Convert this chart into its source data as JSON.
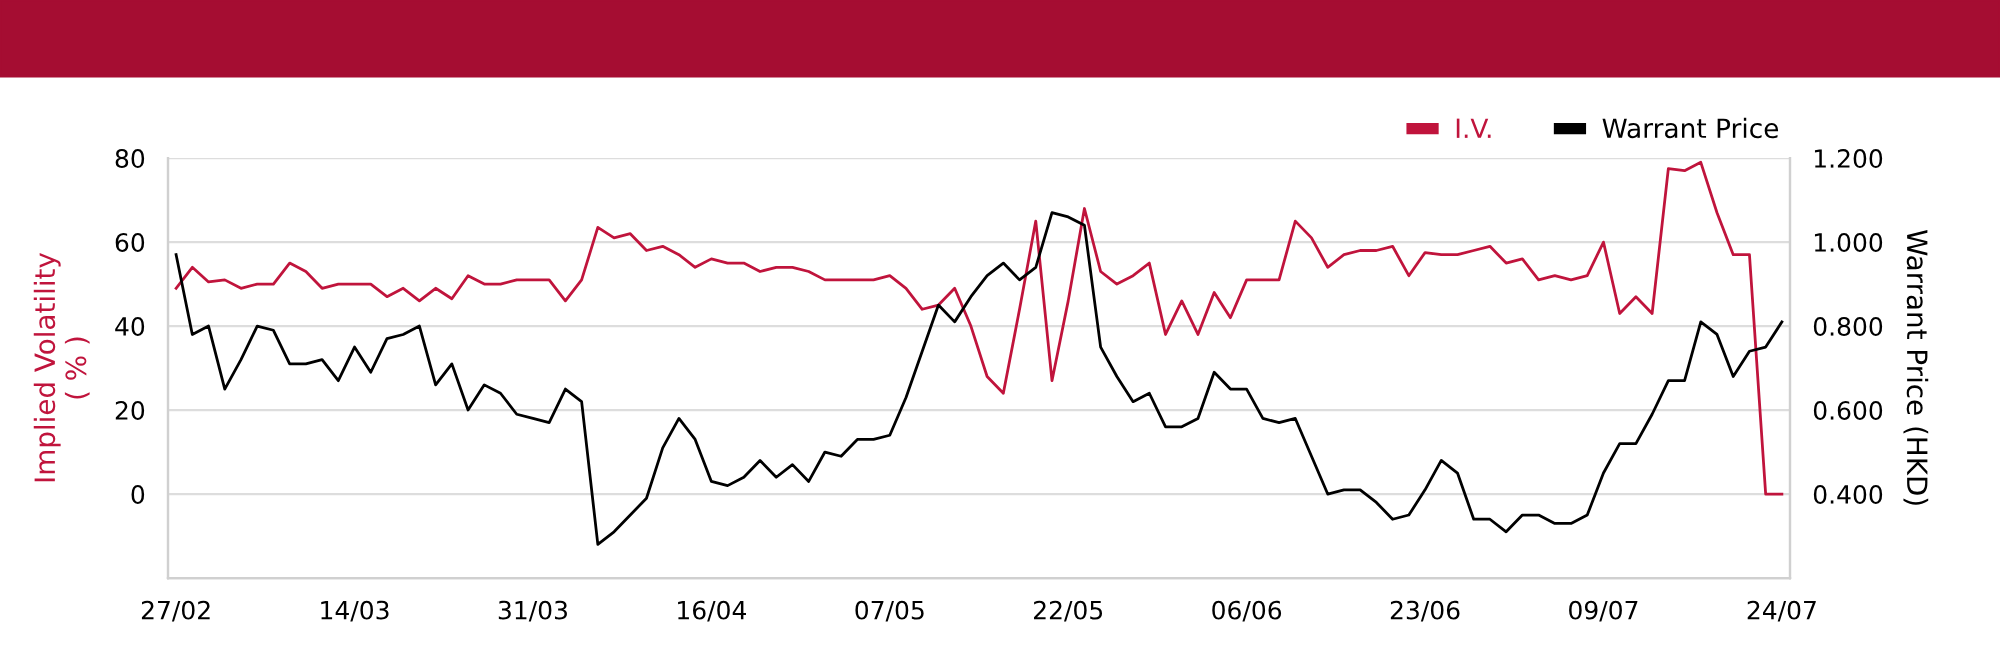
{
  "chart_data": {
    "type": "line",
    "categories": [
      "27/02",
      null,
      null,
      null,
      null,
      null,
      null,
      null,
      null,
      null,
      null,
      "14/03",
      null,
      null,
      null,
      null,
      null,
      null,
      null,
      null,
      null,
      null,
      "31/03",
      null,
      null,
      null,
      null,
      null,
      null,
      null,
      null,
      null,
      null,
      "16/04",
      null,
      null,
      null,
      null,
      null,
      null,
      null,
      null,
      null,
      null,
      "07/05",
      null,
      null,
      null,
      null,
      null,
      null,
      null,
      null,
      null,
      null,
      "22/05",
      null,
      null,
      null,
      null,
      null,
      null,
      null,
      null,
      null,
      null,
      "06/06",
      null,
      null,
      null,
      null,
      null,
      null,
      null,
      null,
      null,
      null,
      "23/06",
      null,
      null,
      null,
      null,
      null,
      null,
      null,
      null,
      null,
      null,
      "09/07",
      null,
      null,
      null,
      null,
      null,
      null,
      null,
      null,
      null,
      null,
      "24/07"
    ],
    "series": [
      {
        "name": "I.V.",
        "color": "#c0143c",
        "values": [
          49,
          54,
          50.5,
          51,
          49,
          50,
          50,
          55,
          53,
          49,
          50,
          50,
          50,
          47,
          49,
          46,
          49,
          46.5,
          52,
          50,
          50,
          51,
          51,
          51,
          46,
          51,
          63.5,
          61,
          62,
          58,
          59,
          57,
          54,
          56,
          55,
          55,
          53,
          54,
          54,
          53,
          51,
          51,
          51,
          51,
          52,
          49,
          44,
          45,
          49,
          40,
          28,
          24,
          44,
          65,
          27,
          46,
          68,
          53,
          50,
          52,
          55,
          38,
          46,
          38,
          48,
          42,
          51,
          51,
          51,
          65,
          61,
          54,
          57,
          58,
          58,
          59,
          52,
          57.5,
          57,
          57,
          58,
          59,
          55,
          56,
          51,
          52,
          51,
          52,
          60,
          43,
          47,
          43,
          77.5,
          77,
          79,
          67,
          57,
          57,
          0,
          0
        ]
      },
      {
        "name": "Warrant Price",
        "color": "#000000",
        "axis": "y2",
        "values": [
          0.97,
          0.78,
          0.8,
          0.65,
          0.72,
          0.8,
          0.79,
          0.71,
          0.71,
          0.72,
          0.67,
          0.75,
          0.69,
          0.77,
          0.78,
          0.8,
          0.66,
          0.71,
          0.6,
          0.66,
          0.64,
          0.59,
          0.58,
          0.57,
          0.65,
          0.62,
          0.28,
          0.31,
          0.35,
          0.39,
          0.51,
          0.58,
          0.53,
          0.43,
          0.42,
          0.44,
          0.48,
          0.44,
          0.47,
          0.43,
          0.5,
          0.49,
          0.53,
          0.53,
          0.54,
          0.63,
          0.74,
          0.85,
          0.81,
          0.87,
          0.92,
          0.95,
          0.91,
          0.94,
          1.07,
          1.06,
          1.04,
          0.75,
          0.68,
          0.62,
          0.64,
          0.56,
          0.56,
          0.58,
          0.69,
          0.65,
          0.65,
          0.58,
          0.57,
          0.58,
          0.49,
          0.4,
          0.41,
          0.41,
          0.38,
          0.34,
          0.35,
          0.41,
          0.48,
          0.45,
          0.34,
          0.34,
          0.31,
          0.35,
          0.35,
          0.33,
          0.33,
          0.35,
          0.45,
          0.52,
          0.52,
          0.59,
          0.67,
          0.67,
          0.81,
          0.78,
          0.68,
          0.74,
          0.75,
          0.81
        ]
      }
    ],
    "ylabel": "Implied Volatility\n( % )",
    "y2label": "Warrant Price (HKD)",
    "ylim": [
      -20,
      80
    ],
    "yticks": [
      0,
      20,
      40,
      60,
      80
    ],
    "y2lim": [
      0.2,
      1.2
    ],
    "y2ticks": [
      {
        "value": 0.4,
        "label": "0.400"
      },
      {
        "value": 0.6,
        "label": "0.600"
      },
      {
        "value": 0.8,
        "label": "0.800"
      },
      {
        "value": 1.0,
        "label": "1.000"
      },
      {
        "value": 1.2,
        "label": "1.200"
      }
    ],
    "grid": "y",
    "legend": "top right",
    "marker": "none",
    "line_style": "solid"
  }
}
